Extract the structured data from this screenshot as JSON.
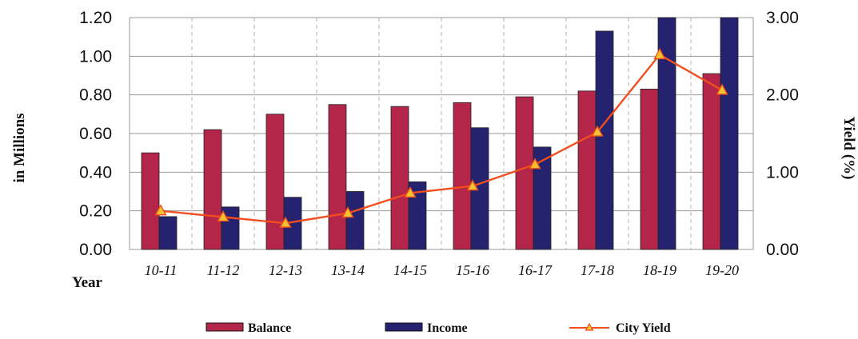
{
  "chart_data": {
    "type": "bar",
    "categories": [
      "10-11",
      "11-12",
      "12-13",
      "13-14",
      "14-15",
      "15-16",
      "16-17",
      "17-18",
      "18-19",
      "19-20"
    ],
    "series": [
      {
        "name": "Balance",
        "axis": "left",
        "color": "#B3264A",
        "values": [
          0.5,
          0.62,
          0.7,
          0.75,
          0.74,
          0.76,
          0.79,
          0.82,
          0.83,
          0.91
        ]
      },
      {
        "name": "Income",
        "axis": "left",
        "color": "#25236F",
        "values": [
          0.17,
          0.22,
          0.27,
          0.3,
          0.35,
          0.63,
          0.53,
          1.13,
          1.2,
          1.2
        ]
      },
      {
        "name": "City Yield",
        "type": "line",
        "axis": "right",
        "color": "#F04E1E",
        "marker_color": "#F2C230",
        "values": [
          0.5,
          0.42,
          0.34,
          0.47,
          0.73,
          0.82,
          1.1,
          1.52,
          2.52,
          2.06
        ]
      }
    ],
    "xlabel": "Year",
    "ylabel": "in Millions",
    "y2label": "Yield (%)",
    "ylim": [
      0,
      1.2
    ],
    "y2lim": [
      0,
      3.0
    ],
    "yticks": [
      "0.00",
      "0.20",
      "0.40",
      "0.60",
      "0.80",
      "1.00",
      "1.20"
    ],
    "y2ticks": [
      "0.00",
      "1.00",
      "2.00",
      "3.00"
    ],
    "grid": true,
    "legend_position": "bottom"
  }
}
